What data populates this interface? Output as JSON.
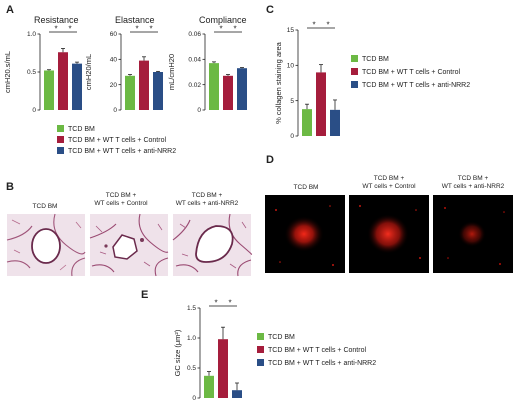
{
  "panels": {
    "A": "A",
    "B": "B",
    "C": "C",
    "D": "D",
    "E": "E"
  },
  "colors": {
    "tcd_bm": "#6cb944",
    "control": "#a51d3c",
    "anti_nrr2": "#2a4e86",
    "error_bar": "#222222"
  },
  "legend": {
    "items": [
      {
        "label": "TCD BM",
        "color": "#6cb944"
      },
      {
        "label": "TCD BM + WT T cells + Control",
        "color": "#a51d3c"
      },
      {
        "label": "TCD BM + WT T cells + anti-NRR2",
        "color": "#2a4e86"
      }
    ]
  },
  "chart_data": [
    {
      "id": "resistance",
      "type": "bar",
      "title": "Resistance",
      "ylabel": "cmH20.s/mL",
      "ylim": [
        0,
        1.0
      ],
      "yticks": [
        "0",
        "0.5",
        "1.0"
      ],
      "tick_values": [
        0,
        0.5,
        1.0
      ],
      "categories": [
        "TCD BM",
        "TCD BM + WT T cells + Control",
        "TCD BM + WT T cells + anti-NRR2"
      ],
      "values": [
        0.52,
        0.76,
        0.61
      ],
      "errors": [
        0.01,
        0.05,
        0.02
      ],
      "significance": [
        [
          "*",
          0,
          1
        ],
        [
          "*",
          1,
          2
        ]
      ]
    },
    {
      "id": "elastance",
      "type": "bar",
      "title": "Elastance",
      "ylabel": "cmH20/mL",
      "ylim": [
        0,
        60
      ],
      "yticks": [
        "0",
        "20",
        "40",
        "60"
      ],
      "tick_values": [
        0,
        20,
        40,
        60
      ],
      "categories": [
        "TCD BM",
        "TCD BM + WT T cells + Control",
        "TCD BM + WT T cells + anti-NRR2"
      ],
      "values": [
        27,
        39,
        30
      ],
      "errors": [
        1,
        3,
        0.5
      ],
      "significance": [
        [
          "*",
          0,
          1
        ],
        [
          "*",
          1,
          2
        ]
      ]
    },
    {
      "id": "compliance",
      "type": "bar",
      "title": "Compliance",
      "ylabel": "mL/cmH20",
      "ylim": [
        0,
        0.06
      ],
      "yticks": [
        "0",
        "0.02",
        "0.04",
        "0.06"
      ],
      "tick_values": [
        0,
        0.02,
        0.04,
        0.06
      ],
      "categories": [
        "TCD BM",
        "TCD BM + WT T cells + Control",
        "TCD BM + WT T cells + anti-NRR2"
      ],
      "values": [
        0.037,
        0.027,
        0.033
      ],
      "errors": [
        0.001,
        0.001,
        0.0005
      ],
      "significance": [
        [
          "*",
          0,
          1
        ],
        [
          "*",
          1,
          2
        ]
      ]
    },
    {
      "id": "collagen",
      "type": "bar",
      "title": "",
      "ylabel": "% collagen staining area",
      "ylim": [
        0,
        15
      ],
      "yticks": [
        "0",
        "5",
        "10",
        "15"
      ],
      "tick_values": [
        0,
        5,
        10,
        15
      ],
      "categories": [
        "TCD BM",
        "TCD BM + WT T cells + Control",
        "TCD BM + WT T cells + anti-NRR2"
      ],
      "values": [
        3.8,
        9.0,
        3.7
      ],
      "errors": [
        0.7,
        1.1,
        1.4
      ],
      "significance": [
        [
          "*",
          0,
          1
        ],
        [
          "*",
          1,
          2
        ]
      ]
    },
    {
      "id": "gc_size",
      "type": "bar",
      "title": "",
      "ylabel": "GC size (μm²)",
      "ylim": [
        0,
        1.5
      ],
      "yticks": [
        "0",
        "0.5",
        "1.0",
        "1.5"
      ],
      "tick_values": [
        0,
        0.5,
        1.0,
        1.5
      ],
      "categories": [
        "TCD BM",
        "TCD BM + WT T cells + Control",
        "TCD BM + WT T cells + anti-NRR2"
      ],
      "values": [
        0.37,
        0.98,
        0.13
      ],
      "errors": [
        0.07,
        0.2,
        0.12
      ],
      "significance": [
        [
          "*",
          0,
          1
        ],
        [
          "*",
          1,
          2
        ]
      ]
    }
  ],
  "histology_B": {
    "labels": [
      "TCD BM",
      "TCD BM +\nWT cells + Control",
      "TCD BM +\nWT cells + anti-NRR2"
    ]
  },
  "fluorescence_D": {
    "labels": [
      "TCD BM",
      "TCD BM +\nWT cells + Control",
      "TCD BM +\nWT cells + anti-NRR2"
    ]
  }
}
